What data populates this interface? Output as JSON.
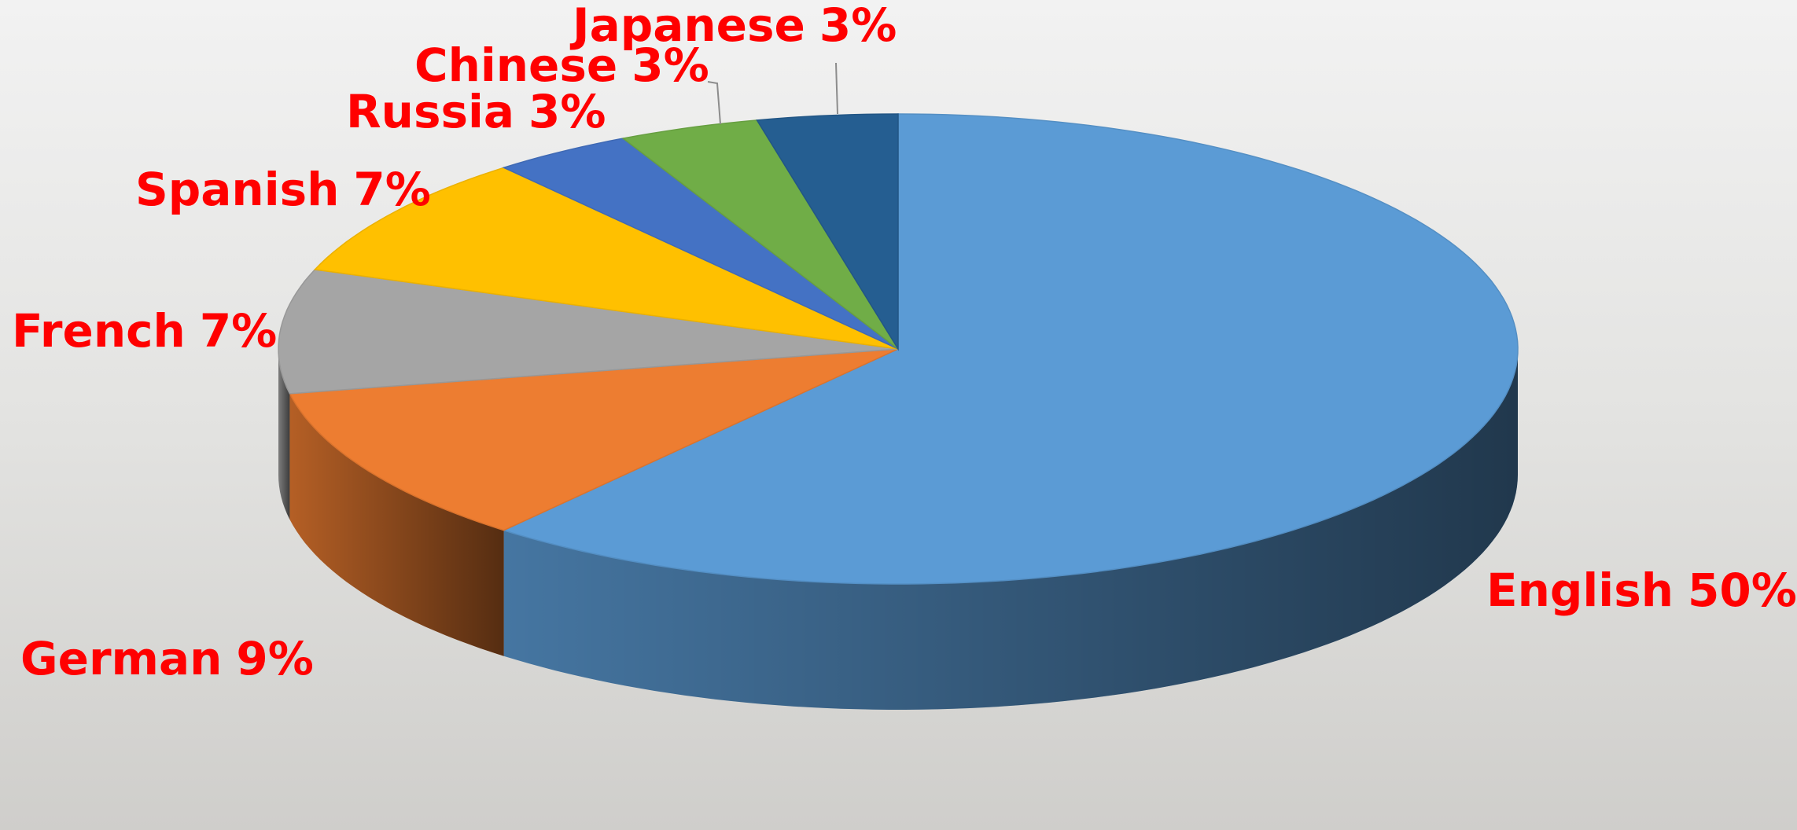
{
  "chart_data": {
    "type": "pie",
    "categories": [
      "English",
      "German",
      "French",
      "Spanish",
      "Russia",
      "Chinese",
      "Japanese"
    ],
    "values": [
      50,
      9,
      7,
      7,
      3,
      3,
      3
    ],
    "value_labels": [
      "50%",
      "9%",
      "7%",
      "7%",
      "3%",
      "3%",
      "3%"
    ],
    "colors": [
      "#5b9bd5",
      "#ed7d31",
      "#a5a5a5",
      "#ffc000",
      "#4472c4",
      "#70ad47",
      "#255e91"
    ],
    "label_color": "#ff0000"
  }
}
